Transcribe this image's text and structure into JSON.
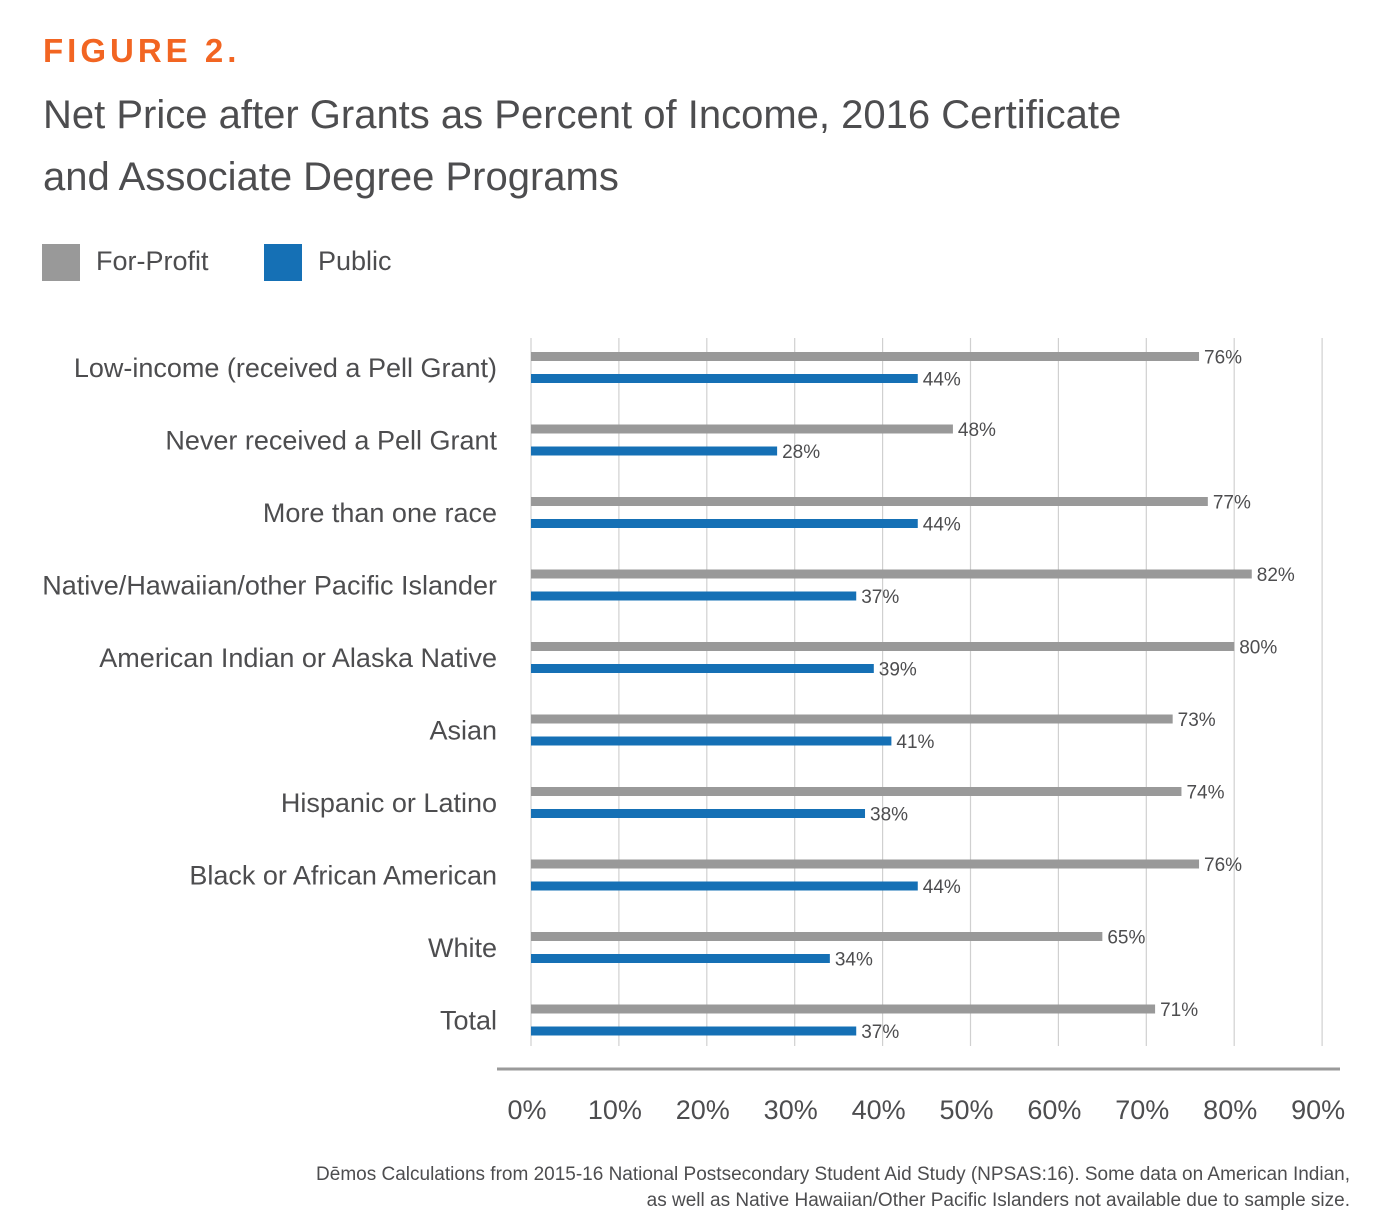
{
  "figure_label": "FIGURE 2.",
  "title_line1": "Net Price after Grants as Percent of Income, 2016 Certificate",
  "title_line2": "and Associate Degree Programs",
  "legend": [
    {
      "label": "For-Profit",
      "color": "#999999"
    },
    {
      "label": "Public",
      "color": "#1570b5"
    }
  ],
  "footnote_line1": "Dēmos Calculations from 2015-16 National Postsecondary Student Aid Study (NPSAS:16). Some data on American Indian,",
  "footnote_line2": "as well as Native Hawaiian/Other Pacific Islanders not available due to sample size.",
  "chart_data": {
    "type": "bar",
    "orientation": "horizontal",
    "categories": [
      "Low-income (received a Pell Grant)",
      "Never received a Pell Grant",
      "More than one race",
      "Native/Hawaiian/other Pacific Islander",
      "American Indian or Alaska Native",
      "Asian",
      "Hispanic or Latino",
      "Black or African American",
      "White",
      "Total"
    ],
    "series": [
      {
        "name": "For-Profit",
        "color": "#999999",
        "values": [
          76,
          48,
          77,
          82,
          80,
          73,
          74,
          76,
          65,
          71
        ],
        "labels": [
          "76%",
          "48%",
          "77%",
          "82%",
          "80%",
          "73%",
          "74%",
          "76%",
          "65%",
          "71%"
        ]
      },
      {
        "name": "Public",
        "color": "#1570b5",
        "values": [
          44,
          28,
          44,
          37,
          39,
          41,
          38,
          44,
          34,
          37
        ],
        "labels": [
          "44%",
          "28%",
          "44%",
          "37%",
          "39%",
          "41%",
          "38%",
          "44%",
          "34%",
          "37%"
        ]
      }
    ],
    "xlim": [
      0,
      90
    ],
    "xticks": [
      0,
      10,
      20,
      30,
      40,
      50,
      60,
      70,
      80,
      90
    ],
    "xtick_labels": [
      "0%",
      "10%",
      "20%",
      "30%",
      "40%",
      "50%",
      "60%",
      "70%",
      "80%",
      "90%"
    ],
    "grid": true,
    "legend_position": "top-left"
  }
}
